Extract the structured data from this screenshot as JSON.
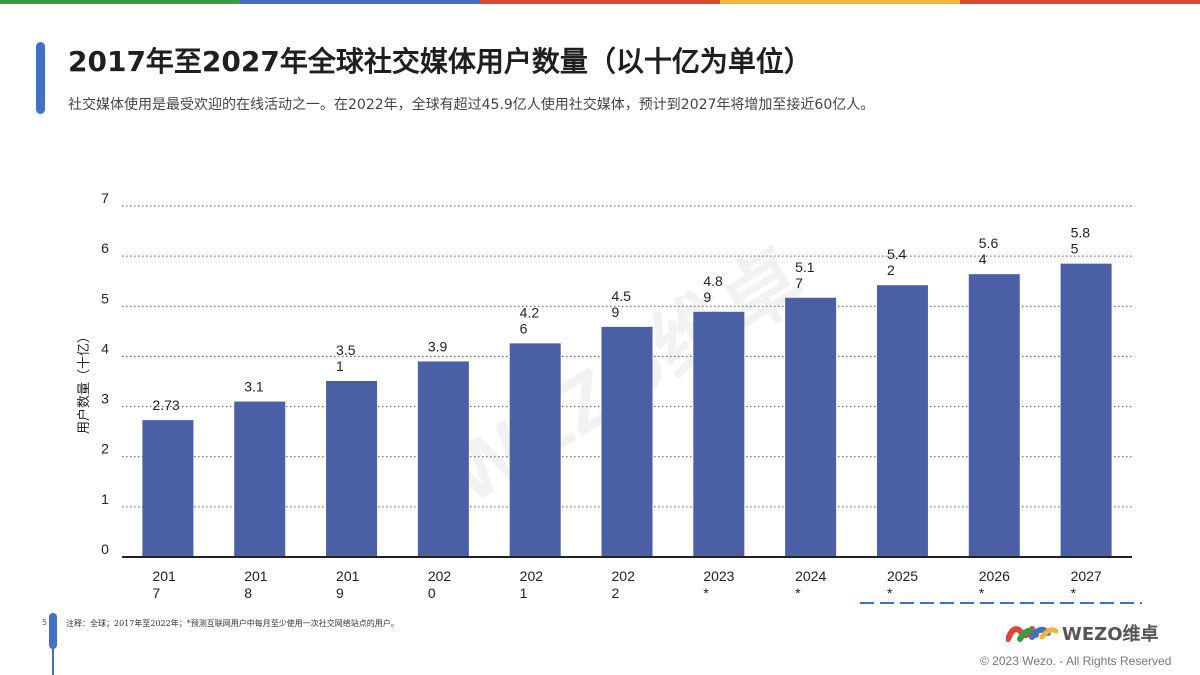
{
  "page": {
    "title": "2017年至2027年全球社交媒体用户数量（以十亿为单位）",
    "subtitle": "社交媒体使用是最受欢迎的在线活动之一。在2022年，全球有超过45.9亿人使用社交媒体，预计到2027年将增加至接近60亿人。",
    "footer_page_number": "5",
    "footer_note": "注释：全球；2017年至2022年；*预测互联网用户中每月至少使用一次社交网络站点的用户。",
    "brand_name": "WEZO维卓",
    "watermark": "WEZO维卓",
    "copyright": "© 2023 Wezo. - All Rights Reserved"
  },
  "colors": {
    "accent": "#4470c4",
    "bar": "#4a5fa6",
    "topbar": [
      "#3b9a45",
      "#4470c4",
      "#d84a2c",
      "#f2b53b",
      "#d84a2c"
    ]
  },
  "chart_data": {
    "type": "bar",
    "title": "",
    "xlabel": "",
    "ylabel": "用户数量（十亿）",
    "categories": [
      "2017",
      "2018",
      "2019",
      "2020",
      "2021",
      "2022",
      "2023*",
      "2024*",
      "2025*",
      "2026*",
      "2027*"
    ],
    "category_labels": [
      "201\n7",
      "201\n8",
      "201\n9",
      "202\n0",
      "202\n1",
      "202\n2",
      "2023\n*",
      "2024\n*",
      "2025\n*",
      "2026\n*",
      "2027\n*"
    ],
    "values": [
      2.73,
      3.1,
      3.51,
      3.9,
      4.26,
      4.59,
      4.89,
      5.17,
      5.42,
      5.64,
      5.85
    ],
    "value_labels": [
      "2.73",
      "3.1",
      "3.5\n1",
      "3.9",
      "4.2\n6",
      "4.5\n9",
      "4.8\n9",
      "5.1\n7",
      "5.4\n2",
      "5.6\n4",
      "5.8\n5"
    ],
    "ylim": [
      0,
      7
    ],
    "yticks": [
      0,
      1,
      2,
      3,
      4,
      5,
      6,
      7
    ],
    "grid": true,
    "legend": "none"
  }
}
